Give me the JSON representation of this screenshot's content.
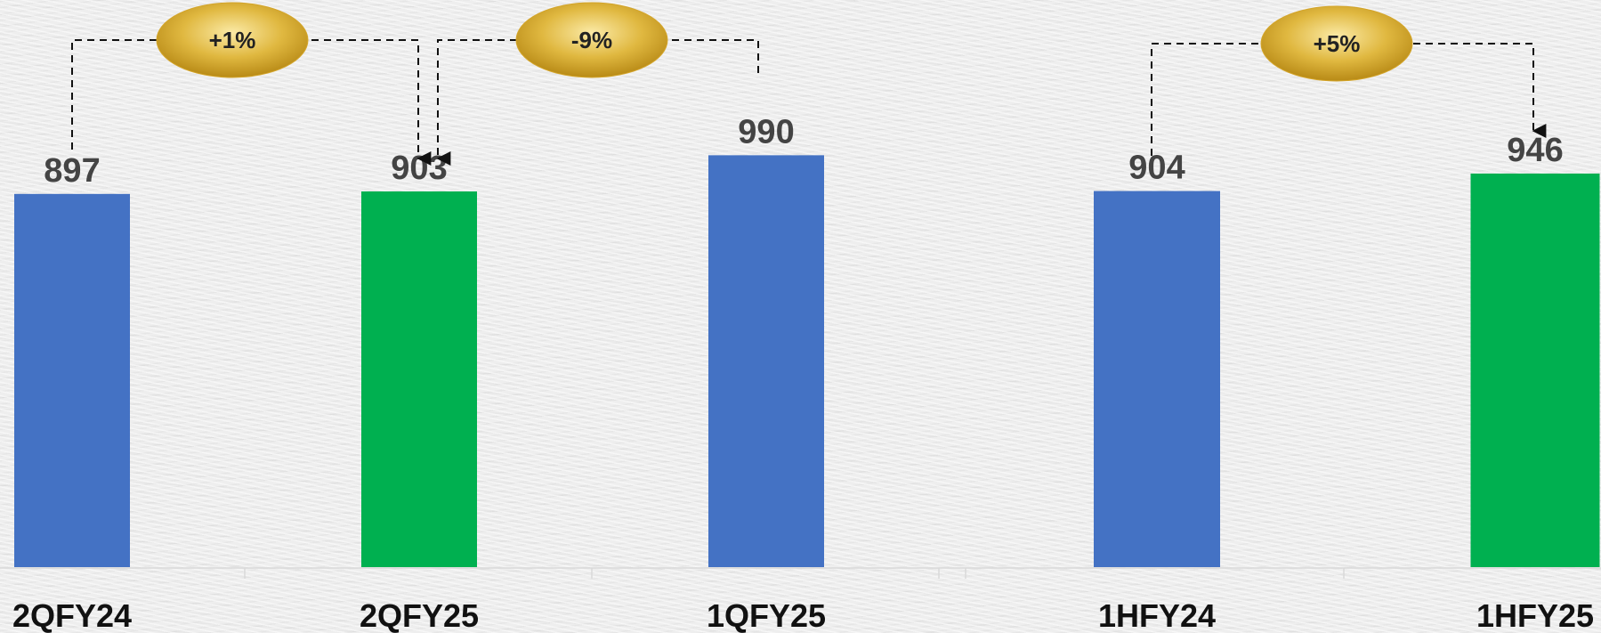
{
  "chart_data": {
    "type": "bar",
    "categories": [
      "2QFY24",
      "2QFY25",
      "1QFY25",
      "1HFY24",
      "1HFY25"
    ],
    "values": [
      897,
      903,
      990,
      904,
      946
    ],
    "value_labels": [
      "897",
      "903",
      "990",
      "904",
      "946"
    ],
    "bar_colors": [
      "#4472C4",
      "#00B050",
      "#4472C4",
      "#4472C4",
      "#00B050"
    ],
    "ylim": [
      0,
      1000
    ],
    "grid": false,
    "legend": "none",
    "annotations": [
      {
        "text": "+1%",
        "from": "2QFY24",
        "to": "2QFY25"
      },
      {
        "text": "-9%",
        "from": "1QFY25",
        "to": "2QFY25"
      },
      {
        "text": "+5%",
        "from": "1HFY24",
        "to": "1HFY25"
      }
    ],
    "badge_color": "#D4A52A"
  }
}
